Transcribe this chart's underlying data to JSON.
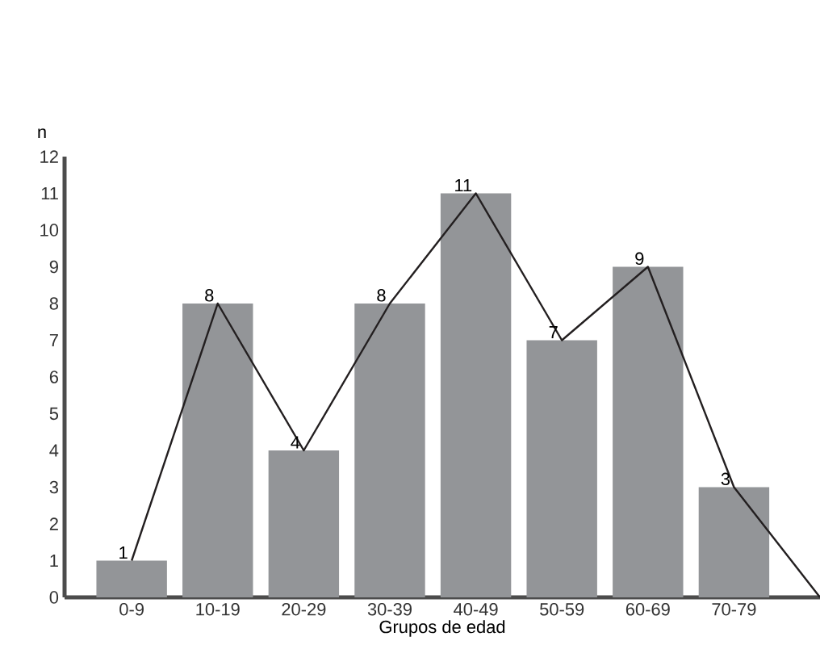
{
  "chart_data": {
    "type": "bar",
    "xlabel": "Grupos de edad",
    "ylabel": "n",
    "categories": [
      "0-9",
      "10-19",
      "20-29",
      "30-39",
      "40-49",
      "50-59",
      "60-69",
      "70-79",
      null
    ],
    "series": [
      {
        "color": "#939598",
        "values": [
          1,
          8,
          4,
          8,
          11,
          7,
          9,
          3,
          null
        ],
        "value_labels": [
          "1",
          "8",
          "4",
          "8",
          "11",
          "7",
          "9",
          "3",
          null
        ]
      },
      {
        "type": "line",
        "color": "#231f20",
        "values": [
          1,
          8,
          4,
          8,
          11,
          7,
          9,
          3,
          0
        ]
      }
    ],
    "ylim": [
      0,
      12
    ],
    "yticks": [
      0,
      1,
      2,
      3,
      4,
      5,
      6,
      7,
      8,
      9,
      10,
      11,
      12
    ],
    "grid": false,
    "marker": "none",
    "line_style": "solid"
  }
}
